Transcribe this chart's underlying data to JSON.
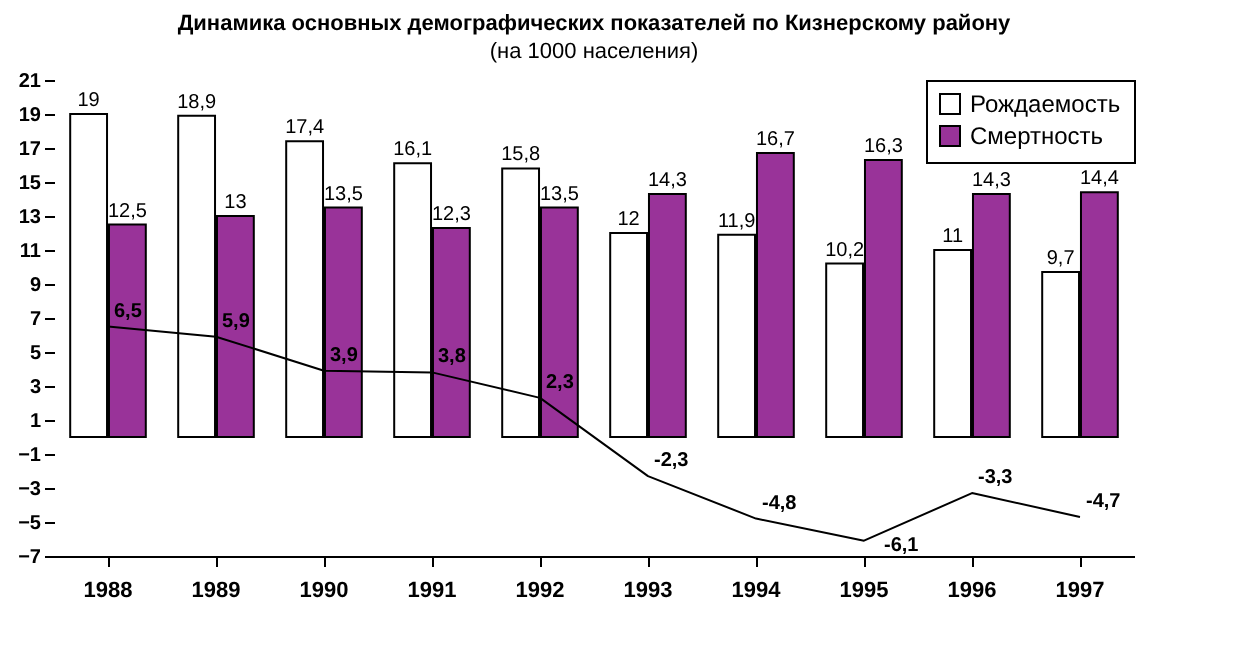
{
  "chart_data": {
    "type": "bar",
    "title": "Динамика основных демографических показателей по Кизнерскому району",
    "subtitle": "(на 1000 населения)",
    "categories": [
      "1988",
      "1989",
      "1990",
      "1991",
      "1992",
      "1993",
      "1994",
      "1995",
      "1996",
      "1997"
    ],
    "series": [
      {
        "name": "Рождаемость",
        "color": "#ffffff",
        "values": [
          19,
          18.9,
          17.4,
          16.1,
          15.8,
          12,
          11.9,
          10.2,
          11,
          9.7
        ],
        "value_labels": [
          "19",
          "18,9",
          "17,4",
          "16,1",
          "15,8",
          "12",
          "11,9",
          "10,2",
          "11",
          "9,7"
        ]
      },
      {
        "name": "Смертность",
        "color": "#993399",
        "values": [
          12.5,
          13,
          13.5,
          12.3,
          13.5,
          14.3,
          16.7,
          16.3,
          14.3,
          14.4
        ],
        "value_labels": [
          "12,5",
          "13",
          "13,5",
          "12,3",
          "13,5",
          "14,3",
          "16,7",
          "16,3",
          "14,3",
          "14,4"
        ]
      },
      {
        "type": "line",
        "color": "#000000",
        "values": [
          6.5,
          5.9,
          3.9,
          3.8,
          2.3,
          -2.3,
          -4.8,
          -6.1,
          -3.3,
          -4.7
        ],
        "value_labels": [
          "6,5",
          "5,9",
          "3,9",
          "3,8",
          "2,3",
          "-2,3",
          "-4,8",
          "-6,1",
          "-3,3",
          "-4,7"
        ]
      }
    ],
    "ylim": [
      -7,
      21
    ],
    "yticks": [
      -7,
      -5,
      -3,
      -1,
      1,
      3,
      5,
      7,
      9,
      11,
      13,
      15,
      17,
      19,
      21
    ],
    "grid": false,
    "legend": "top right",
    "marker": "none",
    "line_style": "solid"
  }
}
